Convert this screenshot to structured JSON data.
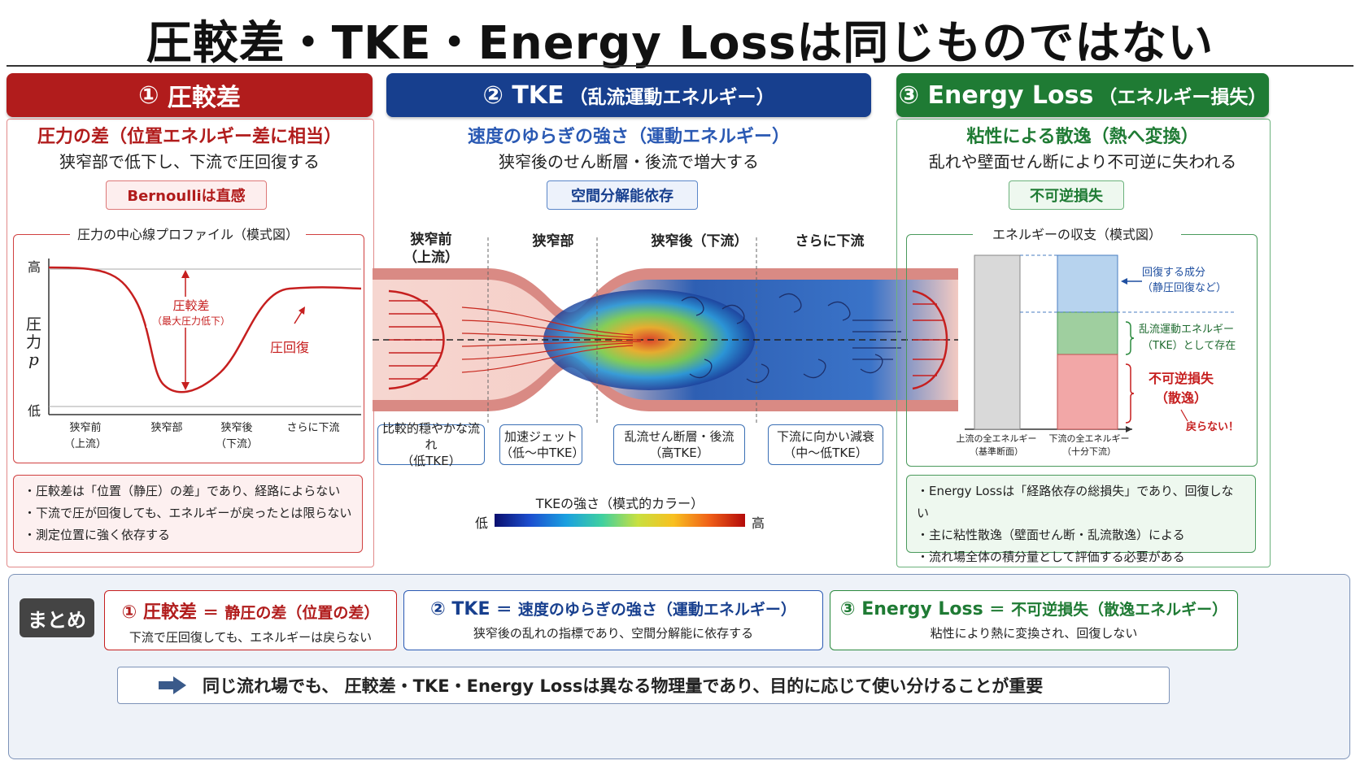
{
  "title": "圧較差・TKE・Energy Lossは同じものではない",
  "col1": {
    "header_num": "①",
    "header": "圧較差",
    "subhead": "圧力の差（位置エネルギー差に相当）",
    "subtext": "狭窄部で低下し、下流で圧回復する",
    "badge": "Bernoulliは直感",
    "plot_title": "圧力の中心線プロファイル（模式図）",
    "y_high": "高",
    "y_low": "低",
    "y_label_1": "圧",
    "y_label_2": "力",
    "y_label_3": "p",
    "x_labels": [
      "狭窄前\n（上流）",
      "狭窄部",
      "狭窄後\n（下流）",
      "さらに下流"
    ],
    "ann_drop_1": "圧較差",
    "ann_drop_2": "（最大圧力低下）",
    "ann_recovery": "圧回復",
    "bullets": [
      "圧較差は「位置（静圧）の差」であり、経路によらない",
      "下流で圧が回復しても、エネルギーが戻ったとは限らない",
      "測定位置に強く依存する"
    ]
  },
  "col2": {
    "header_num": "②",
    "header": "TKE",
    "header_small": "（乱流運動エネルギー）",
    "subhead": "速度のゆらぎの強さ（運動エネルギー）",
    "subtext": "狭窄後のせん断層・後流で増大する",
    "badge": "空間分解能依存",
    "segments": [
      "狭窄前\n（上流）",
      "狭窄部",
      "狭窄後（下流）",
      "さらに下流"
    ],
    "flow_labels": [
      {
        "line1": "比較的穏やかな流れ",
        "line2": "（低TKE）"
      },
      {
        "line1": "加速ジェット",
        "line2": "（低〜中TKE）"
      },
      {
        "line1": "乱流せん断層・後流",
        "line2": "（高TKE）"
      },
      {
        "line1": "下流に向かい減衰",
        "line2": "（中〜低TKE）"
      }
    ],
    "colorbar_title": "TKEの強さ（模式的カラー）",
    "colorbar_low": "低",
    "colorbar_high": "高"
  },
  "col3": {
    "header_num": "③",
    "header": "Energy Loss",
    "header_small": "（エネルギー損失）",
    "subhead": "粘性による散逸（熱へ変換）",
    "subtext": "乱れや壁面せん断により不可逆に失われる",
    "badge": "不可逆損失",
    "plot_title": "エネルギーの収支（模式図）",
    "ann_recover_1": "回復する成分",
    "ann_recover_2": "（静圧回復など）",
    "ann_tke_1": "乱流運動エネルギー",
    "ann_tke_2": "（TKE）として存在",
    "ann_loss_1": "不可逆損失",
    "ann_loss_2": "（散逸）",
    "ann_noreturn": "戻らない！",
    "bar1_label_1": "上流の全エネルギー",
    "bar1_label_2": "（基準断面）",
    "bar2_label_1": "下流の全エネルギー",
    "bar2_label_2": "（十分下流）",
    "bullets": [
      "Energy Lossは「経路依存の総損失」であり、回復しない",
      "主に粘性散逸（壁面せん断・乱流散逸）による",
      "流れ場全体の積分量として評価する必要がある"
    ]
  },
  "summary": {
    "label": "まとめ",
    "items": [
      {
        "num": "①",
        "name": "圧較差",
        "eq": "＝",
        "def": "静圧の差（位置の差）",
        "sub": "下流で圧回復しても、エネルギーは戻らない"
      },
      {
        "num": "②",
        "name": "TKE",
        "eq": "＝",
        "def": "速度のゆらぎの強さ（運動エネルギー）",
        "sub": "狭窄後の乱れの指標であり、空間分解能に依存する"
      },
      {
        "num": "③",
        "name": "Energy Loss",
        "eq": "＝",
        "def": "不可逆損失（散逸エネルギー）",
        "sub": "粘性により熱に変換され、回復しない"
      }
    ],
    "conclusion": "同じ流れ場でも、 圧較差・TKE・Energy Lossは異なる物理量であり、目的に応じて使い分けることが重要"
  },
  "colors": {
    "red": "#b11c1c",
    "blue": "#173f8e",
    "green": "#1f7b34"
  }
}
